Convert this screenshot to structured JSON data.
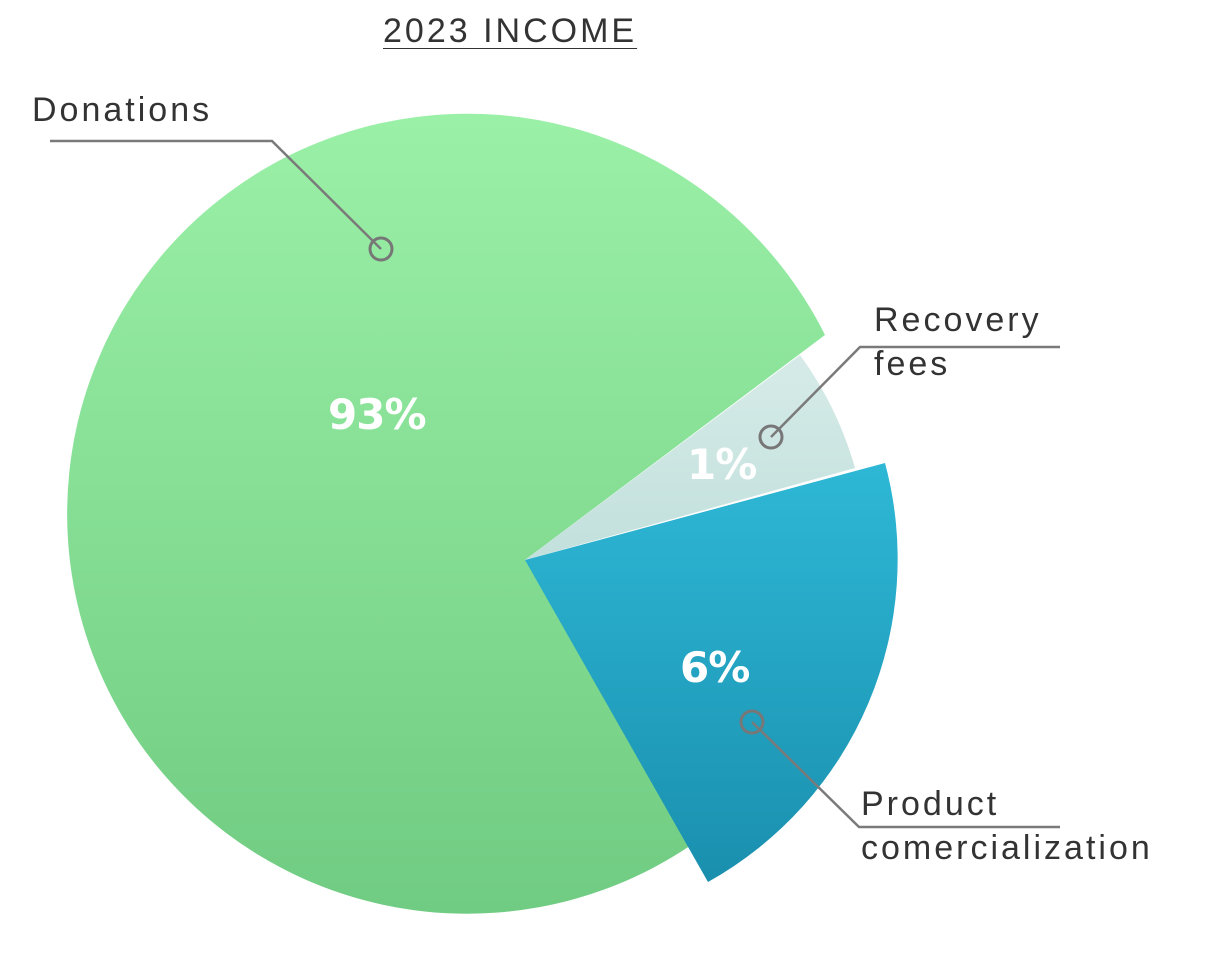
{
  "chart_data": {
    "type": "pie",
    "title": "2023 INCOME",
    "slices": [
      {
        "label_lines": [
          "Donations"
        ],
        "pct_label": "93%",
        "value": 93,
        "color": "#86dc93"
      },
      {
        "label_lines": [
          "Recovery",
          "fees"
        ],
        "pct_label": "1%",
        "value": 1,
        "color": "#cde6e3"
      },
      {
        "label_lines": [
          "Product",
          "comercialization"
        ],
        "pct_label": "6%",
        "value": 6,
        "color": "#22a8c7"
      }
    ],
    "legend": "none",
    "grid": false
  }
}
